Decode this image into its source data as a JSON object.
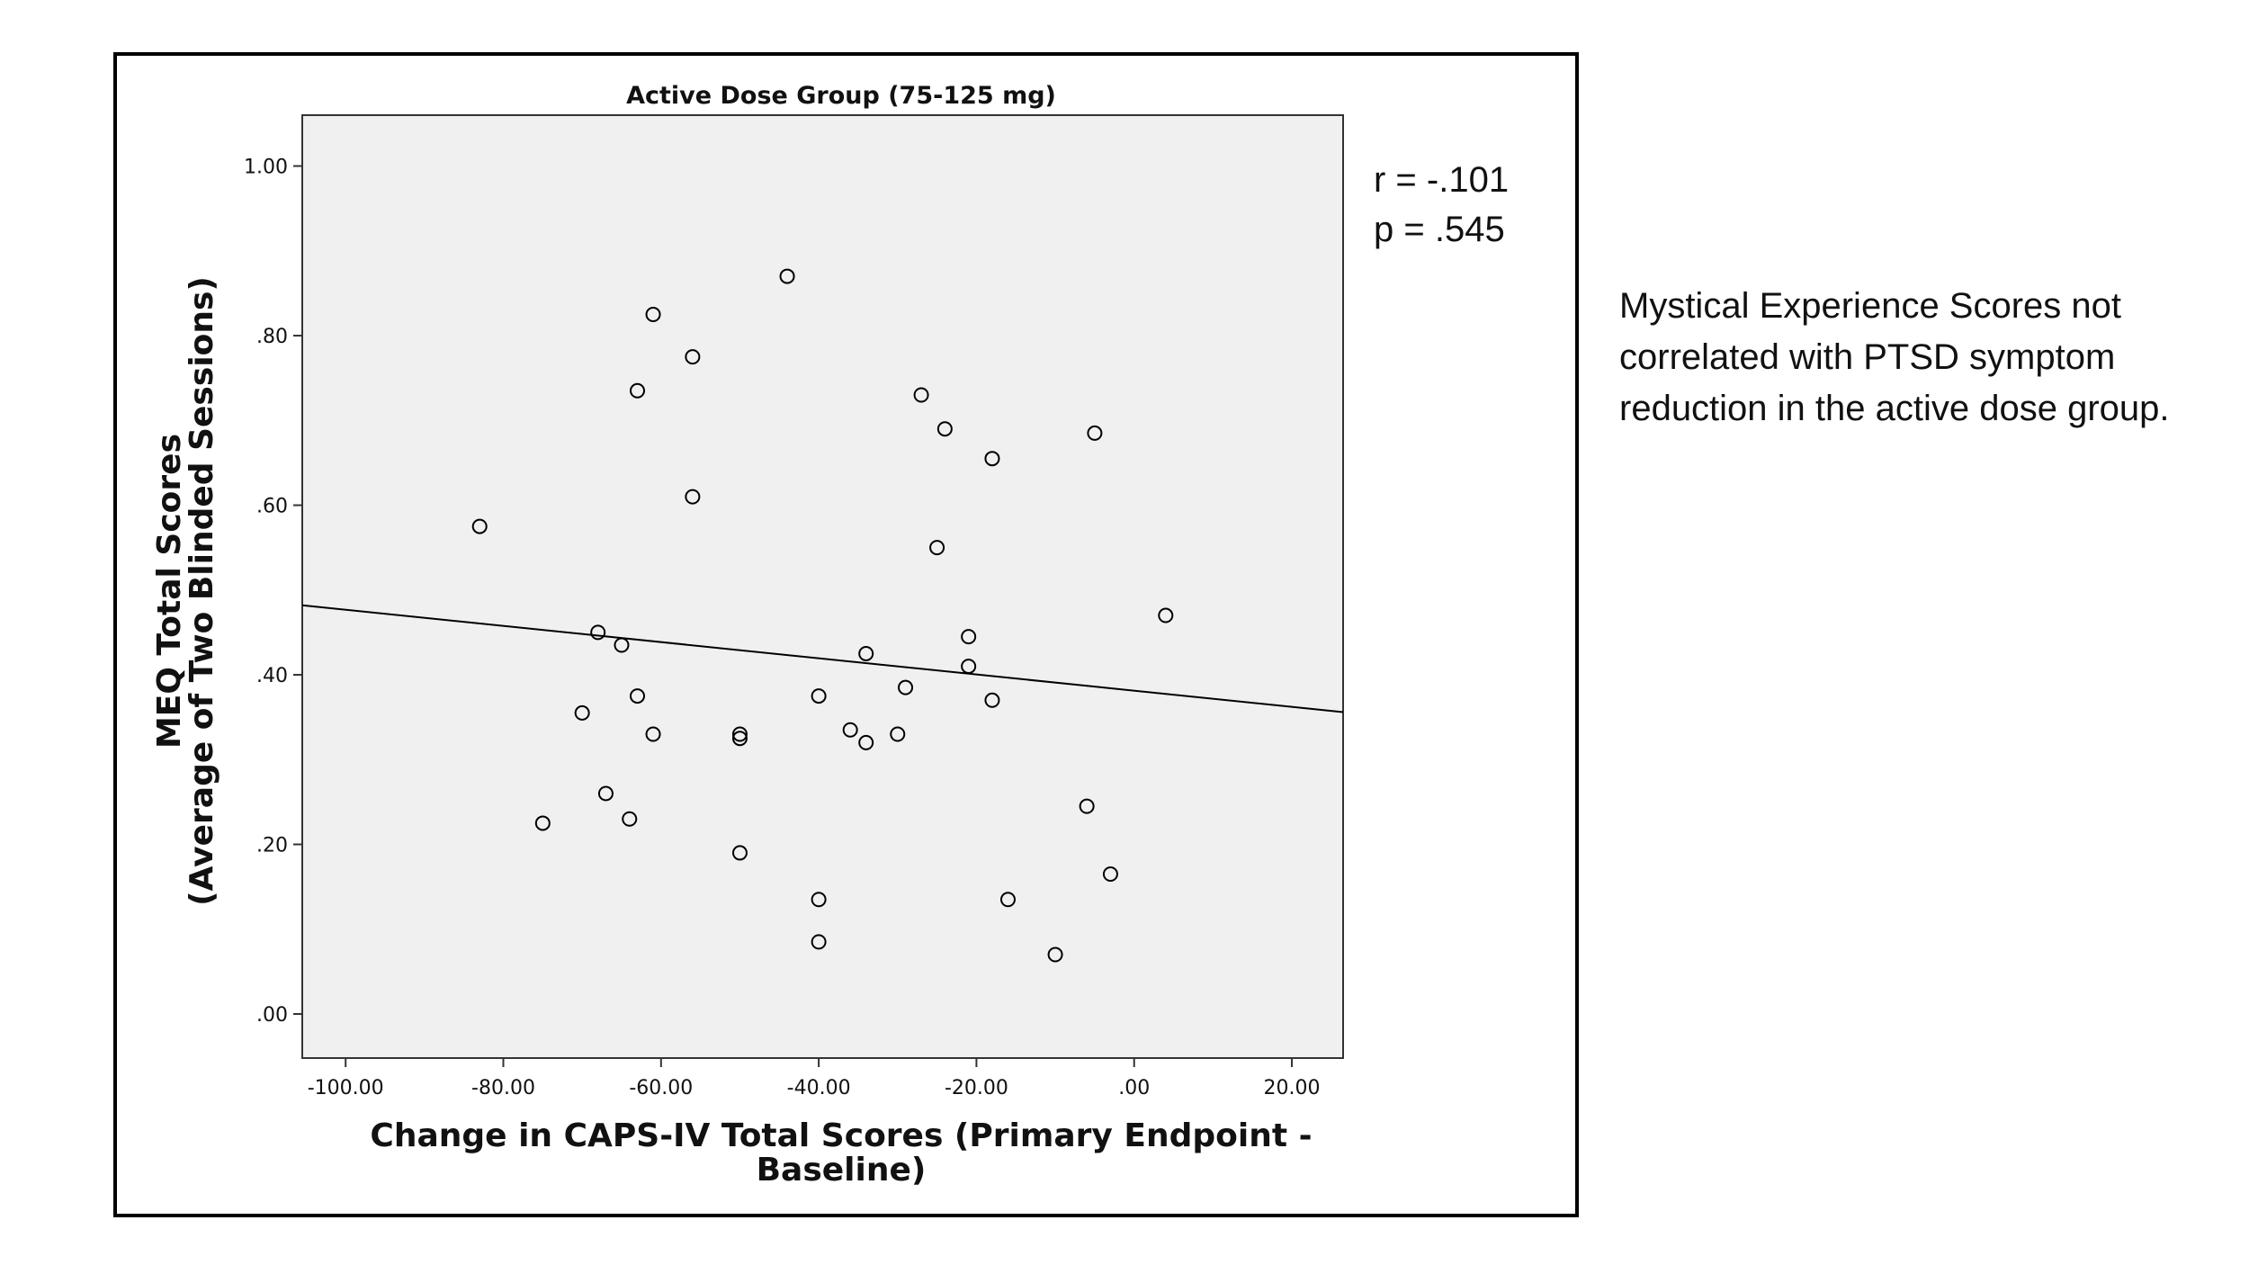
{
  "chart_data": {
    "type": "scatter",
    "title": "Active Dose Group (75-125 mg)",
    "xlabel_lines": [
      "Change in CAPS-IV Total Scores (Primary Endpoint -",
      "Baseline)"
    ],
    "ylabel_lines": [
      "MEQ Total Scores",
      "(Average of Two Blinded Sessions)"
    ],
    "xlim": [
      -105.5,
      26.5
    ],
    "ylim": [
      -0.052,
      1.06
    ],
    "xticks": [
      -100,
      -80,
      -60,
      -40,
      -20,
      0,
      20
    ],
    "xtick_labels": [
      "-100.00",
      "-80.00",
      "-60.00",
      "-40.00",
      "-20.00",
      ".00",
      "20.00"
    ],
    "yticks": [
      0,
      0.2,
      0.4,
      0.6,
      0.8,
      1.0
    ],
    "ytick_labels": [
      ".00",
      ".20",
      ".40",
      ".60",
      ".80",
      "1.00"
    ],
    "grid": false,
    "points": [
      [
        -44,
        0.87
      ],
      [
        -61,
        0.825
      ],
      [
        -56,
        0.775
      ],
      [
        -63,
        0.735
      ],
      [
        -27,
        0.73
      ],
      [
        -24,
        0.69
      ],
      [
        -5,
        0.685
      ],
      [
        -18,
        0.655
      ],
      [
        -56,
        0.61
      ],
      [
        -83,
        0.575
      ],
      [
        -25,
        0.55
      ],
      [
        4,
        0.47
      ],
      [
        -68,
        0.45
      ],
      [
        -21,
        0.445
      ],
      [
        -65,
        0.435
      ],
      [
        -34,
        0.425
      ],
      [
        -21,
        0.41
      ],
      [
        -29,
        0.385
      ],
      [
        -63,
        0.375
      ],
      [
        -40,
        0.375
      ],
      [
        -18,
        0.37
      ],
      [
        -70,
        0.355
      ],
      [
        -36,
        0.335
      ],
      [
        -61,
        0.33
      ],
      [
        -50,
        0.33
      ],
      [
        -30,
        0.33
      ],
      [
        -50,
        0.325
      ],
      [
        -34,
        0.32
      ],
      [
        -67,
        0.26
      ],
      [
        -6,
        0.245
      ],
      [
        -64,
        0.23
      ],
      [
        -75,
        0.225
      ],
      [
        -50,
        0.19
      ],
      [
        -3,
        0.165
      ],
      [
        -40,
        0.135
      ],
      [
        -16,
        0.135
      ],
      [
        -40,
        0.085
      ],
      [
        -10,
        0.07
      ]
    ],
    "fit_line": {
      "x": [
        -105.5,
        26.5
      ],
      "y": [
        0.482,
        0.356
      ]
    },
    "stats": {
      "r": "r = -.101",
      "p": "p = .545"
    }
  },
  "caption": "Mystical Experience Scores not correlated with PTSD symptom reduction in the active dose group."
}
